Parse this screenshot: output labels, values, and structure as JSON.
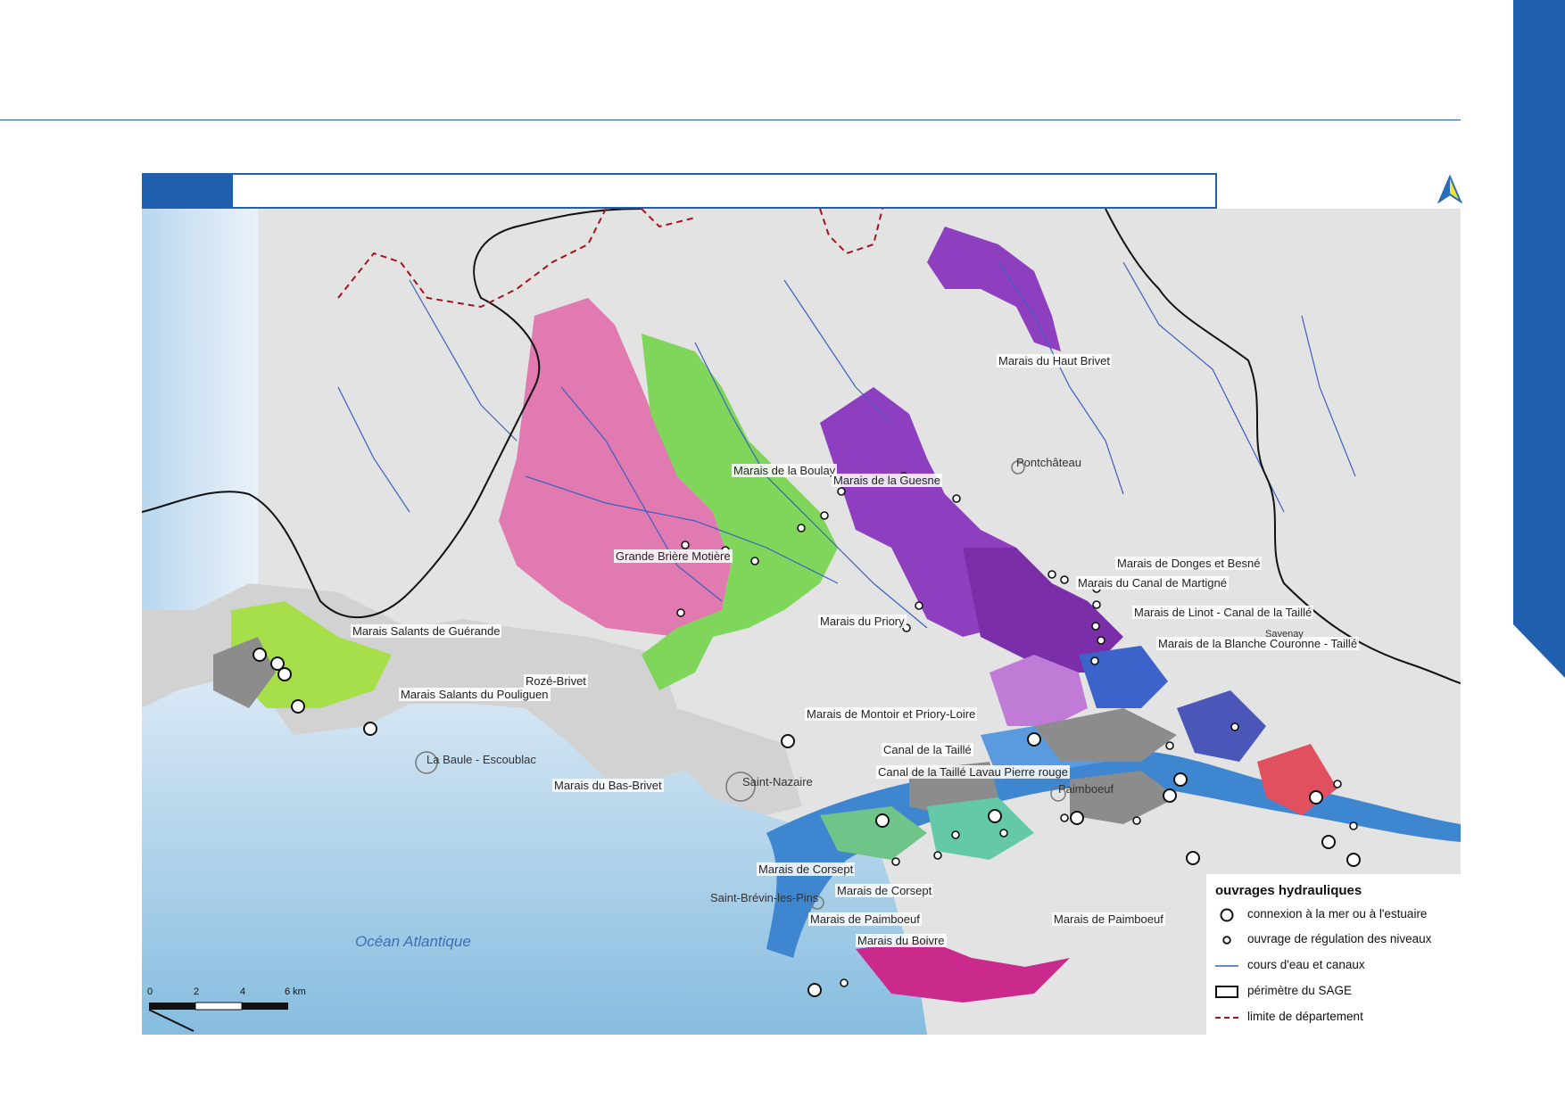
{
  "page": {
    "title": ""
  },
  "map": {
    "ocean_label": "Océan Atlantique",
    "marsh_labels": [
      "Marais du Haut Brivet",
      "Marais de la Boulay",
      "Marais de la Guesne",
      "Grande Brière Motière",
      "Marais de Donges et Besné",
      "Marais du Canal de Martigné",
      "Marais de Linot - Canal de la Taillé",
      "Marais du Priory",
      "Marais Salants de Guérande",
      "Marais de la Blanche Couronne - Taillé",
      "Rozé-Brivet",
      "Marais Salants du Pouliguen",
      "Marais de Montoir et Priory-Loire",
      "Canal de la Taillé",
      "Canal de la Taillé Lavau Pierre rouge",
      "Marais du Bas-Brivet",
      "Marais de Corsept",
      "Marais de Corsept",
      "Marais de Paimboeuf",
      "Marais de Paimboeuf",
      "Marais du Boivre"
    ],
    "towns": [
      "Pontchâteau",
      "La Baule - Escoublac",
      "Saint-Nazaire",
      "Paimboeuf",
      "Saint-Brévin-les-Pins",
      "Savenay"
    ],
    "colors": {
      "marais_brivet": "#e07ab0",
      "marais_vert": "#7fd65a",
      "marais_violet": "#8e3fbf",
      "marais_salants": "#a6df4a",
      "estuaire": "#3f86d1",
      "industrie": "#8c8c8c",
      "mer": "#9fcbe6",
      "accent": "#1f5fae"
    }
  },
  "legend": {
    "title": "ouvrages hydrauliques",
    "items": [
      {
        "icon": "large-circle-icon",
        "label": "connexion à la mer ou à l'estuaire"
      },
      {
        "icon": "small-circle-icon",
        "label": "ouvrage de régulation des niveaux"
      },
      {
        "icon": "river-line-icon",
        "label": "cours d'eau et canaux"
      },
      {
        "icon": "rectangle-icon",
        "label": "périmètre du SAGE"
      },
      {
        "icon": "dashed-line-icon",
        "label": "limite de département"
      }
    ]
  },
  "scale": {
    "ticks": [
      "0",
      "2",
      "4",
      "6 km"
    ]
  }
}
